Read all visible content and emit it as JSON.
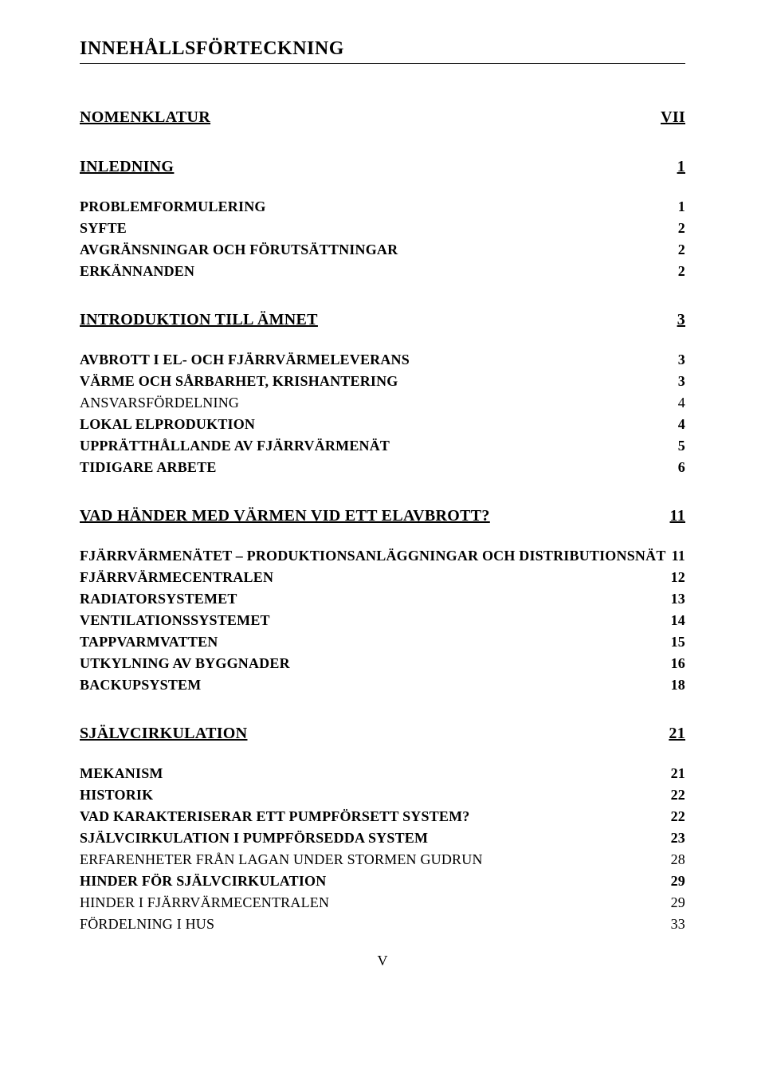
{
  "title": "INNEHÅLLSFÖRTECKNING",
  "footer": "V",
  "toc": {
    "s1": {
      "label": "NOMENKLATUR",
      "page": "VII"
    },
    "s2": {
      "label": "INLEDNING",
      "page": "1"
    },
    "s2_1": {
      "label": "PROBLEMFORMULERING",
      "page": "1"
    },
    "s2_2": {
      "label": "SYFTE",
      "page": "2"
    },
    "s2_3": {
      "label": "AVGRÄNSNINGAR OCH FÖRUTSÄTTNINGAR",
      "page": "2"
    },
    "s2_4": {
      "label": "ERKÄNNANDEN",
      "page": "2"
    },
    "s3": {
      "label": "INTRODUKTION TILL ÄMNET",
      "page": "3"
    },
    "s3_1": {
      "label": "AVBROTT I EL- OCH FJÄRRVÄRMELEVERANS",
      "page": "3"
    },
    "s3_2": {
      "label": "VÄRME OCH SÅRBARHET, KRISHANTERING",
      "page": "3"
    },
    "s3_3": {
      "label": "ANSVARSFÖRDELNING",
      "page": "4"
    },
    "s3_4": {
      "label": "LOKAL ELPRODUKTION",
      "page": "4"
    },
    "s3_5": {
      "label": "UPPRÄTTHÅLLANDE AV FJÄRRVÄRMENÄT",
      "page": "5"
    },
    "s3_6": {
      "label": "TIDIGARE ARBETE",
      "page": "6"
    },
    "s4": {
      "label": "VAD HÄNDER MED VÄRMEN VID ETT ELAVBROTT?",
      "page": "11"
    },
    "s4_1": {
      "label": "FJÄRRVÄRMENÄTET – PRODUKTIONSANLÄGGNINGAR OCH DISTRIBUTIONSNÄT",
      "page": "11"
    },
    "s4_2": {
      "label": "FJÄRRVÄRMECENTRALEN",
      "page": "12"
    },
    "s4_3": {
      "label": "RADIATORSYSTEMET",
      "page": "13"
    },
    "s4_4": {
      "label": "VENTILATIONSSYSTEMET",
      "page": "14"
    },
    "s4_5": {
      "label": "TAPPVARMVATTEN",
      "page": "15"
    },
    "s4_6": {
      "label": "UTKYLNING AV BYGGNADER",
      "page": "16"
    },
    "s4_7": {
      "label": "BACKUPSYSTEM",
      "page": "18"
    },
    "s5": {
      "label": "SJÄLVCIRKULATION",
      "page": "21"
    },
    "s5_1": {
      "label": "MEKANISM",
      "page": "21"
    },
    "s5_2": {
      "label": "HISTORIK",
      "page": "22"
    },
    "s5_3": {
      "label": "VAD KARAKTERISERAR ETT PUMPFÖRSETT SYSTEM?",
      "page": "22"
    },
    "s5_4": {
      "label": "SJÄLVCIRKULATION I PUMPFÖRSEDDA SYSTEM",
      "page": "23"
    },
    "s5_5": {
      "label": "ERFARENHETER FRÅN LAGAN UNDER STORMEN GUDRUN",
      "page": "28"
    },
    "s5_6": {
      "label": "HINDER FÖR SJÄLVCIRKULATION",
      "page": "29"
    },
    "s5_7": {
      "label": "HINDER I FJÄRRVÄRMECENTRALEN",
      "page": "29"
    },
    "s5_8": {
      "label": "FÖRDELNING I HUS",
      "page": "33"
    }
  }
}
